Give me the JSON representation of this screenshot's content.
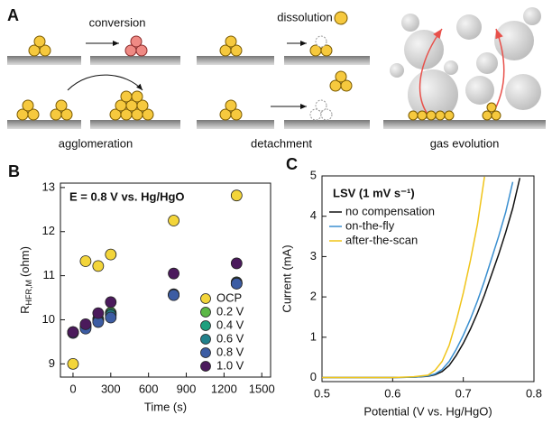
{
  "diagram": {
    "label": "A",
    "captions": [
      "conversion",
      "dissolution",
      "agglomeration",
      "detachment",
      "gas evolution"
    ]
  },
  "chart_data": [
    {
      "label": "B",
      "type": "scatter",
      "annotation": "E = 0.8 V vs. Hg/HgO",
      "xlabel": "Time (s)",
      "ylabel": {
        "main": "R",
        "sub": "HFR,M",
        "unit": "(ohm)"
      },
      "x": [
        0,
        100,
        200,
        300,
        800,
        1300
      ],
      "series": [
        {
          "name": "OCP",
          "color": "#f3d53a",
          "values": [
            9.0,
            11.33,
            11.22,
            11.48,
            12.25,
            12.82
          ]
        },
        {
          "name": "0.2 V",
          "color": "#5cb846",
          "values": [
            9.72,
            9.88,
            10.02,
            10.16,
            10.58,
            10.85
          ]
        },
        {
          "name": "0.4 V",
          "color": "#1f9f7e",
          "values": [
            9.72,
            9.85,
            10.0,
            10.13,
            10.57,
            10.83
          ]
        },
        {
          "name": "0.6 V",
          "color": "#22818b",
          "values": [
            9.71,
            9.83,
            9.98,
            10.1,
            10.56,
            10.82
          ]
        },
        {
          "name": "0.8 V",
          "color": "#3c5ca3",
          "values": [
            9.7,
            9.8,
            9.95,
            10.05,
            10.56,
            10.82
          ]
        },
        {
          "name": "1.0 V",
          "color": "#4b1a5c",
          "values": [
            9.72,
            9.9,
            10.15,
            10.4,
            11.05,
            11.28
          ]
        }
      ],
      "xlim": [
        -100,
        1570
      ],
      "xticks": [
        0,
        300,
        600,
        900,
        1200,
        1500
      ],
      "ylim": [
        8.7,
        13.1
      ],
      "yticks": [
        9,
        10,
        11,
        12,
        13
      ],
      "legend": "lower right"
    },
    {
      "label": "C",
      "type": "line",
      "title": "LSV (1 mV s⁻¹)",
      "xlabel": "Potential (V vs. Hg/HgO)",
      "ylabel": "Current (mA)",
      "x": [
        0.5,
        0.55,
        0.6,
        0.63,
        0.65,
        0.66,
        0.67,
        0.68,
        0.69,
        0.7,
        0.71,
        0.72,
        0.73,
        0.74,
        0.75,
        0.76,
        0.77,
        0.78
      ],
      "series": [
        {
          "name": "no compensation",
          "color": "#111111",
          "values": [
            0,
            0,
            0,
            0.01,
            0.03,
            0.07,
            0.15,
            0.3,
            0.55,
            0.85,
            1.2,
            1.6,
            2.05,
            2.55,
            3.05,
            3.6,
            4.2,
            4.95
          ]
        },
        {
          "name": "on-the-fly",
          "color": "#3a8fd0",
          "values": [
            0,
            0,
            0,
            0.01,
            0.04,
            0.09,
            0.2,
            0.4,
            0.7,
            1.05,
            1.45,
            1.9,
            2.4,
            2.95,
            3.5,
            4.1,
            4.85,
            null
          ]
        },
        {
          "name": "after-the-scan",
          "color": "#f0c419",
          "values": [
            0,
            0,
            0,
            0.02,
            0.06,
            0.18,
            0.4,
            0.8,
            1.4,
            2.1,
            2.9,
            3.8,
            4.98,
            null,
            null,
            null,
            null,
            null
          ]
        }
      ],
      "xlim": [
        0.5,
        0.8
      ],
      "xticks": [
        0.5,
        0.6,
        0.7,
        0.8
      ],
      "ylim": [
        -0.1,
        5
      ],
      "yticks": [
        0,
        1,
        2,
        3,
        4,
        5
      ],
      "legend": "upper left"
    }
  ]
}
